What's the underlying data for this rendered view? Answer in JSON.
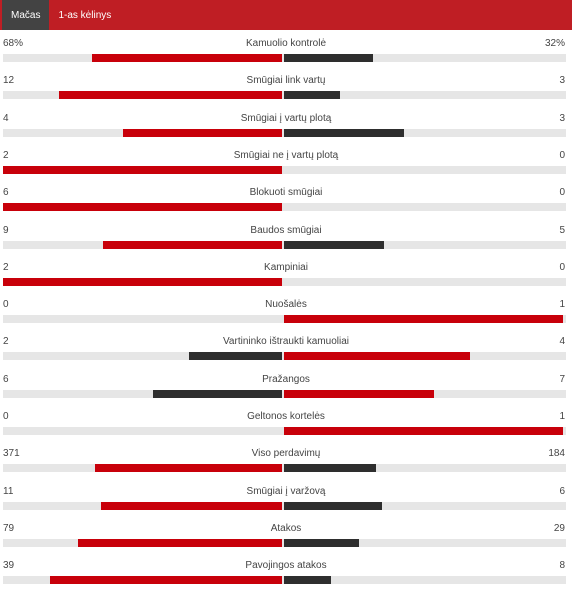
{
  "tabs": [
    {
      "label": "Mačas",
      "active": true
    },
    {
      "label": "1-as kėlinys",
      "active": false
    }
  ],
  "colors": {
    "header": "#bf1e24",
    "home": "#c8000a",
    "away": "#2e2e2e",
    "track": "#e6e6e6"
  },
  "stats": [
    {
      "label": "Kamuolio kontrolė",
      "home_text": "68%",
      "away_text": "32%",
      "home": 68,
      "away": 32,
      "home_color": "red",
      "away_color": "dark"
    },
    {
      "label": "Smūgiai link vartų",
      "home_text": "12",
      "away_text": "3",
      "home": 12,
      "away": 3,
      "home_color": "red",
      "away_color": "dark"
    },
    {
      "label": "Smūgiai į vartų plotą",
      "home_text": "4",
      "away_text": "3",
      "home": 4,
      "away": 3,
      "home_color": "red",
      "away_color": "dark"
    },
    {
      "label": "Smūgiai ne į vartų plotą",
      "home_text": "2",
      "away_text": "0",
      "home": 2,
      "away": 0,
      "home_color": "red",
      "away_color": "dark"
    },
    {
      "label": "Blokuoti smūgiai",
      "home_text": "6",
      "away_text": "0",
      "home": 6,
      "away": 0,
      "home_color": "red",
      "away_color": "dark"
    },
    {
      "label": "Baudos smūgiai",
      "home_text": "9",
      "away_text": "5",
      "home": 9,
      "away": 5,
      "home_color": "red",
      "away_color": "dark"
    },
    {
      "label": "Kampiniai",
      "home_text": "2",
      "away_text": "0",
      "home": 2,
      "away": 0,
      "home_color": "red",
      "away_color": "dark"
    },
    {
      "label": "Nuošalės",
      "home_text": "0",
      "away_text": "1",
      "home": 0,
      "away": 1,
      "home_color": "dark",
      "away_color": "red"
    },
    {
      "label": "Vartininko ištraukti kamuoliai",
      "home_text": "2",
      "away_text": "4",
      "home": 2,
      "away": 4,
      "home_color": "dark",
      "away_color": "red"
    },
    {
      "label": "Pražangos",
      "home_text": "6",
      "away_text": "7",
      "home": 6,
      "away": 7,
      "home_color": "dark",
      "away_color": "red"
    },
    {
      "label": "Geltonos kortelės",
      "home_text": "0",
      "away_text": "1",
      "home": 0,
      "away": 1,
      "home_color": "dark",
      "away_color": "red"
    },
    {
      "label": "Viso perdavimų",
      "home_text": "371",
      "away_text": "184",
      "home": 371,
      "away": 184,
      "home_color": "red",
      "away_color": "dark"
    },
    {
      "label": "Smūgiai į varžovą",
      "home_text": "11",
      "away_text": "6",
      "home": 11,
      "away": 6,
      "home_color": "red",
      "away_color": "dark"
    },
    {
      "label": "Atakos",
      "home_text": "79",
      "away_text": "29",
      "home": 79,
      "away": 29,
      "home_color": "red",
      "away_color": "dark"
    },
    {
      "label": "Pavojingos atakos",
      "home_text": "39",
      "away_text": "8",
      "home": 39,
      "away": 8,
      "home_color": "red",
      "away_color": "dark"
    }
  ]
}
